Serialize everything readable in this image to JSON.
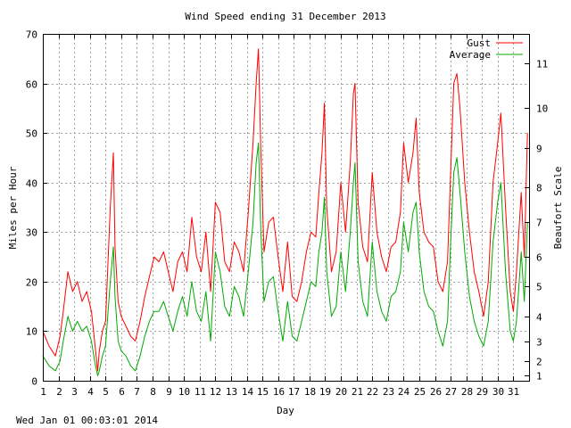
{
  "chart_data": {
    "type": "line",
    "title": "Wind Speed ending 31 December 2013",
    "xlabel": "Day",
    "ylabel": "Miles per Hour",
    "y2label": "Beaufort Scale",
    "xlim": [
      1,
      32
    ],
    "ylim": [
      0,
      70
    ],
    "xticks": [
      "1",
      "2",
      "3",
      "4",
      "5",
      "6",
      "7",
      "8",
      "9",
      "10",
      "11",
      "12",
      "13",
      "14",
      "15",
      "16",
      "17",
      "18",
      "19",
      "20",
      "21",
      "22",
      "23",
      "24",
      "25",
      "26",
      "27",
      "28",
      "29",
      "30",
      "31"
    ],
    "yticks": [
      0,
      10,
      20,
      30,
      40,
      50,
      60,
      70
    ],
    "beaufort_ticks": [
      {
        "label": "1",
        "mph": 1
      },
      {
        "label": "2",
        "mph": 4
      },
      {
        "label": "3",
        "mph": 8
      },
      {
        "label": "4",
        "mph": 13
      },
      {
        "label": "5",
        "mph": 19
      },
      {
        "label": "6",
        "mph": 25
      },
      {
        "label": "7",
        "mph": 32
      },
      {
        "label": "8",
        "mph": 39
      },
      {
        "label": "9",
        "mph": 47
      },
      {
        "label": "10",
        "mph": 55
      },
      {
        "label": "11",
        "mph": 64
      }
    ],
    "grid": true,
    "legend_position": "top-right",
    "series": [
      {
        "name": "Gust",
        "color": "#ff0000",
        "x": [
          1.0,
          1.4,
          1.8,
          2.1,
          2.3,
          2.6,
          2.9,
          3.2,
          3.5,
          3.8,
          4.1,
          4.3,
          4.5,
          4.6,
          4.8,
          5.0,
          5.3,
          5.5,
          5.6,
          5.8,
          6.0,
          6.3,
          6.6,
          6.9,
          7.2,
          7.5,
          7.8,
          8.1,
          8.4,
          8.7,
          9.0,
          9.3,
          9.6,
          9.9,
          10.2,
          10.5,
          10.8,
          11.1,
          11.4,
          11.7,
          12.0,
          12.3,
          12.6,
          12.9,
          13.2,
          13.5,
          13.8,
          14.1,
          14.4,
          14.6,
          14.75,
          14.9,
          15.1,
          15.4,
          15.7,
          16.0,
          16.3,
          16.6,
          16.9,
          17.2,
          17.5,
          17.8,
          18.1,
          18.4,
          18.6,
          18.8,
          18.95,
          19.1,
          19.4,
          19.7,
          20.0,
          20.3,
          20.6,
          20.8,
          20.9,
          21.1,
          21.4,
          21.7,
          22.0,
          22.3,
          22.6,
          22.9,
          23.2,
          23.5,
          23.8,
          24.0,
          24.3,
          24.6,
          24.8,
          25.0,
          25.3,
          25.6,
          25.9,
          26.2,
          26.5,
          26.8,
          27.0,
          27.2,
          27.4,
          27.6,
          27.9,
          28.2,
          28.5,
          28.8,
          29.1,
          29.4,
          29.7,
          30.0,
          30.2,
          30.5,
          30.8,
          31.0,
          31.2,
          31.5,
          31.7,
          31.9
        ],
        "values": [
          10,
          7,
          5,
          9,
          14,
          22,
          18,
          20,
          16,
          18,
          14,
          8,
          2,
          6,
          10,
          12,
          35,
          46,
          27,
          16,
          13,
          11,
          9,
          8,
          12,
          17,
          21,
          25,
          24,
          26,
          22,
          18,
          24,
          26,
          22,
          33,
          25,
          22,
          30,
          18,
          36,
          34,
          24,
          22,
          28,
          26,
          22,
          34,
          48,
          60,
          67,
          46,
          26,
          32,
          33,
          25,
          18,
          28,
          17,
          16,
          20,
          26,
          30,
          29,
          38,
          46,
          56,
          35,
          22,
          26,
          40,
          30,
          44,
          58,
          60,
          36,
          27,
          24,
          42,
          30,
          25,
          22,
          27,
          28,
          34,
          48,
          40,
          46,
          53,
          38,
          30,
          28,
          27,
          20,
          18,
          24,
          42,
          60,
          62,
          55,
          40,
          30,
          22,
          18,
          13,
          20,
          40,
          48,
          54,
          35,
          18,
          14,
          22,
          38,
          25,
          50
        ]
      },
      {
        "name": "Average",
        "color": "#00aa00",
        "x": [
          1.0,
          1.4,
          1.8,
          2.1,
          2.3,
          2.6,
          2.9,
          3.2,
          3.5,
          3.8,
          4.1,
          4.3,
          4.5,
          4.6,
          4.8,
          5.0,
          5.3,
          5.5,
          5.6,
          5.8,
          6.0,
          6.3,
          6.6,
          6.9,
          7.2,
          7.5,
          7.8,
          8.1,
          8.4,
          8.7,
          9.0,
          9.3,
          9.6,
          9.9,
          10.2,
          10.5,
          10.8,
          11.1,
          11.4,
          11.7,
          12.0,
          12.3,
          12.6,
          12.9,
          13.2,
          13.5,
          13.8,
          14.1,
          14.4,
          14.6,
          14.75,
          14.9,
          15.1,
          15.4,
          15.7,
          16.0,
          16.3,
          16.6,
          16.9,
          17.2,
          17.5,
          17.8,
          18.1,
          18.4,
          18.6,
          18.8,
          18.95,
          19.1,
          19.4,
          19.7,
          20.0,
          20.3,
          20.6,
          20.8,
          20.9,
          21.1,
          21.4,
          21.7,
          22.0,
          22.3,
          22.6,
          22.9,
          23.2,
          23.5,
          23.8,
          24.0,
          24.3,
          24.6,
          24.8,
          25.0,
          25.3,
          25.6,
          25.9,
          26.2,
          26.5,
          26.8,
          27.0,
          27.2,
          27.4,
          27.6,
          27.9,
          28.2,
          28.5,
          28.8,
          29.1,
          29.4,
          29.7,
          30.0,
          30.2,
          30.5,
          30.8,
          31.0,
          31.2,
          31.5,
          31.7,
          31.9
        ],
        "values": [
          5,
          3,
          2,
          4,
          8,
          13,
          10,
          12,
          10,
          11,
          8,
          4,
          1,
          2,
          5,
          7,
          20,
          27,
          17,
          8,
          6,
          5,
          3,
          2,
          5,
          9,
          12,
          14,
          14,
          16,
          13,
          10,
          14,
          17,
          13,
          20,
          14,
          12,
          18,
          8,
          26,
          22,
          15,
          13,
          19,
          17,
          13,
          22,
          32,
          44,
          48,
          30,
          16,
          20,
          21,
          14,
          8,
          16,
          9,
          8,
          12,
          16,
          20,
          19,
          26,
          30,
          37,
          22,
          13,
          15,
          26,
          18,
          30,
          40,
          44,
          24,
          16,
          13,
          28,
          18,
          14,
          12,
          17,
          18,
          22,
          32,
          26,
          34,
          36,
          26,
          18,
          15,
          14,
          10,
          7,
          12,
          28,
          42,
          45,
          38,
          26,
          17,
          12,
          9,
          7,
          12,
          28,
          36,
          40,
          22,
          10,
          8,
          12,
          26,
          16,
          32
        ]
      }
    ]
  },
  "footer": {
    "timestamp": "Wed Jan 01 00:03:01 2014"
  }
}
